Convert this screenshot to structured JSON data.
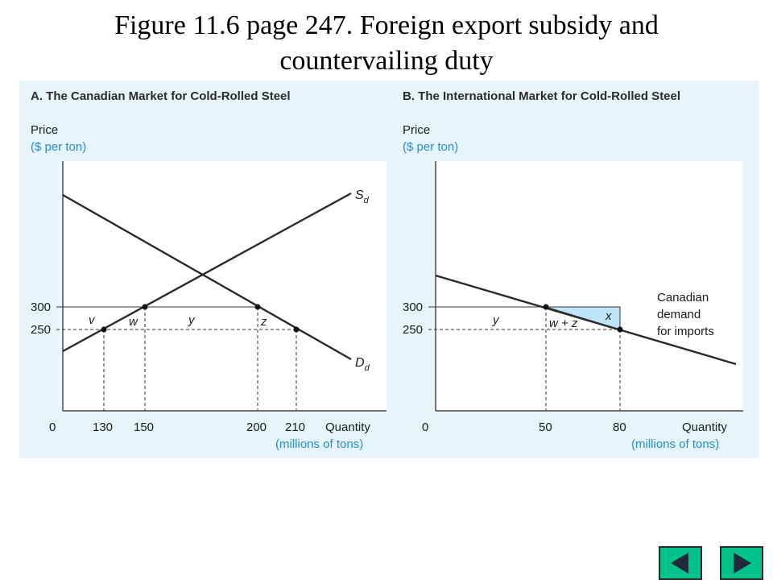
{
  "title": {
    "line1": "Figure 11.6 page 247. Foreign export subsidy and",
    "line2": "countervailing duty"
  },
  "panel_a": {
    "title": "A. The Canadian Market for Cold-Rolled Steel",
    "y_title": "Price",
    "y_unit": "($ per ton)",
    "x_title": "Quantity",
    "x_unit": "(millions of tons)",
    "origin": "0",
    "y_ticks": [
      "300",
      "250"
    ],
    "x_ticks": [
      "130",
      "150",
      "200",
      "210"
    ],
    "regions": [
      "v",
      "w",
      "y",
      "z"
    ],
    "supply_label": "S",
    "supply_sub": "d",
    "demand_label": "D",
    "demand_sub": "d"
  },
  "panel_b": {
    "title": "B. The International Market for Cold-Rolled Steel",
    "y_title": "Price",
    "y_unit": "($ per ton)",
    "x_title": "Quantity",
    "x_unit": "(millions of tons)",
    "origin": "0",
    "y_ticks": [
      "300",
      "250"
    ],
    "x_ticks": [
      "50",
      "80"
    ],
    "regions": [
      "y",
      "w + z",
      "x"
    ],
    "curve_label": [
      "Canadian",
      "demand",
      "for imports"
    ]
  },
  "colors": {
    "figure_background": "#e8f4fb",
    "accent_text": "#1c8fd6",
    "shaded_triangle": "#bfe3f7",
    "nav_button": "#00c28a"
  },
  "nav": {
    "previous": "previous-slide",
    "next": "next-slide"
  }
}
